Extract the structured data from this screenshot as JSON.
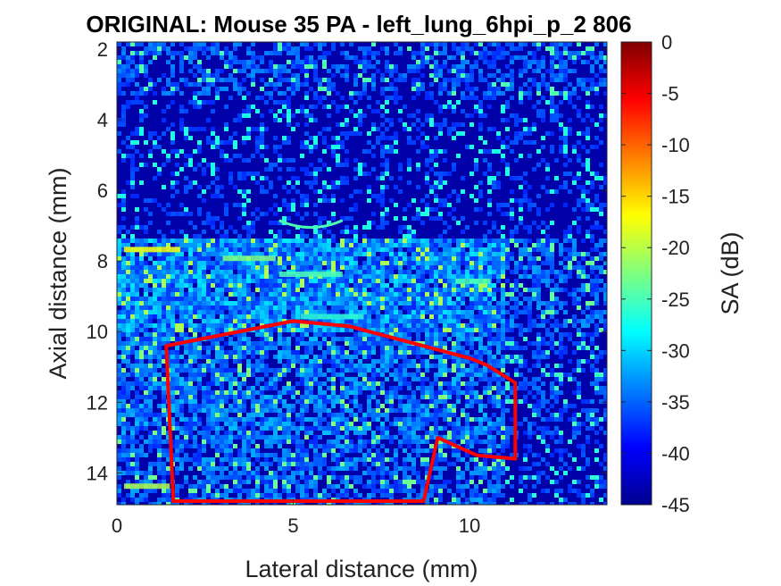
{
  "chart_data": {
    "type": "heatmap",
    "title": "ORIGINAL: Mouse 35 PA -   left_lung_6hpi_p_2 806",
    "xlabel": "Lateral distance (mm)",
    "ylabel": "Axial distance (mm)",
    "colorbar_label": "SA (dB)",
    "xlim": [
      0,
      13.9
    ],
    "ylim": [
      1.8,
      14.9
    ],
    "y_reversed": true,
    "clim": [
      -45,
      0
    ],
    "colormap": "jet",
    "x_ticks": [
      0,
      5,
      10
    ],
    "y_ticks": [
      2,
      4,
      6,
      8,
      10,
      12,
      14
    ],
    "colorbar_ticks": [
      0,
      -5,
      -10,
      -15,
      -20,
      -25,
      -30,
      -35,
      -40,
      -45
    ],
    "roi_polygon": {
      "color": "#ff0000",
      "x": [
        1.4,
        5.0,
        6.6,
        10.0,
        10.5,
        11.3,
        11.3,
        10.2,
        9.1,
        8.7,
        1.6
      ],
      "y": [
        10.4,
        9.7,
        9.85,
        10.75,
        10.95,
        11.45,
        13.6,
        13.5,
        13.0,
        14.8,
        14.8
      ]
    }
  }
}
